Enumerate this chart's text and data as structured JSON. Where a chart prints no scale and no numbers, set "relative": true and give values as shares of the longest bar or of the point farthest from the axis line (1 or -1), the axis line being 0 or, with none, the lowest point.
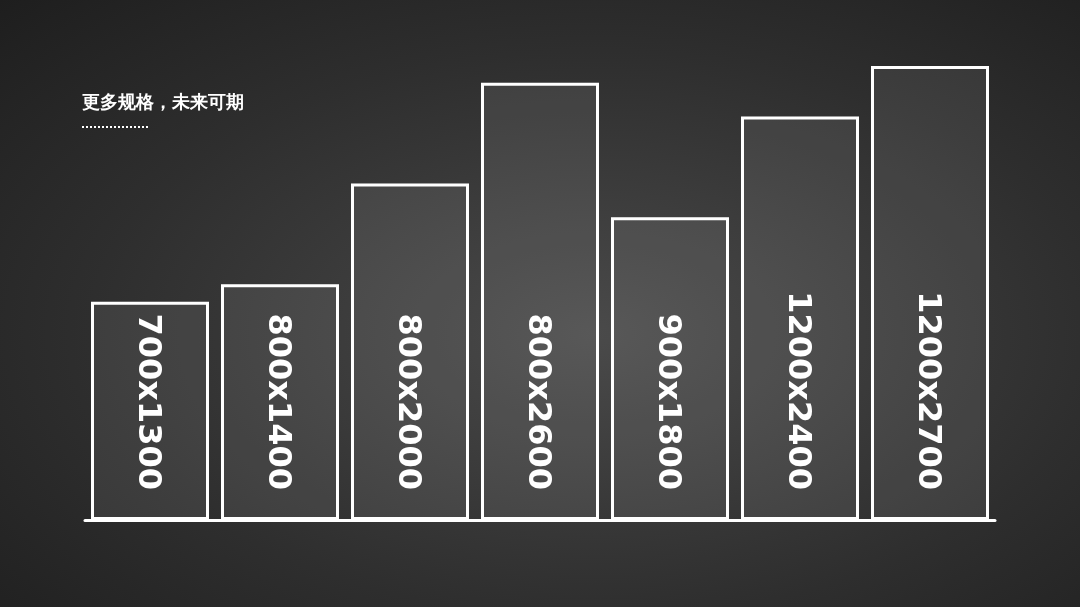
{
  "chart_data": {
    "type": "bar",
    "title": "更多规格，未来可期",
    "relative": true,
    "categories": [
      "700x1300",
      "800x1400",
      "800x2000",
      "800x2600",
      "900x1800",
      "1200x2400",
      "1200x2700"
    ],
    "values": [
      0.481,
      0.519,
      0.741,
      0.963,
      0.667,
      0.889,
      1
    ],
    "color": "#ffffff"
  }
}
